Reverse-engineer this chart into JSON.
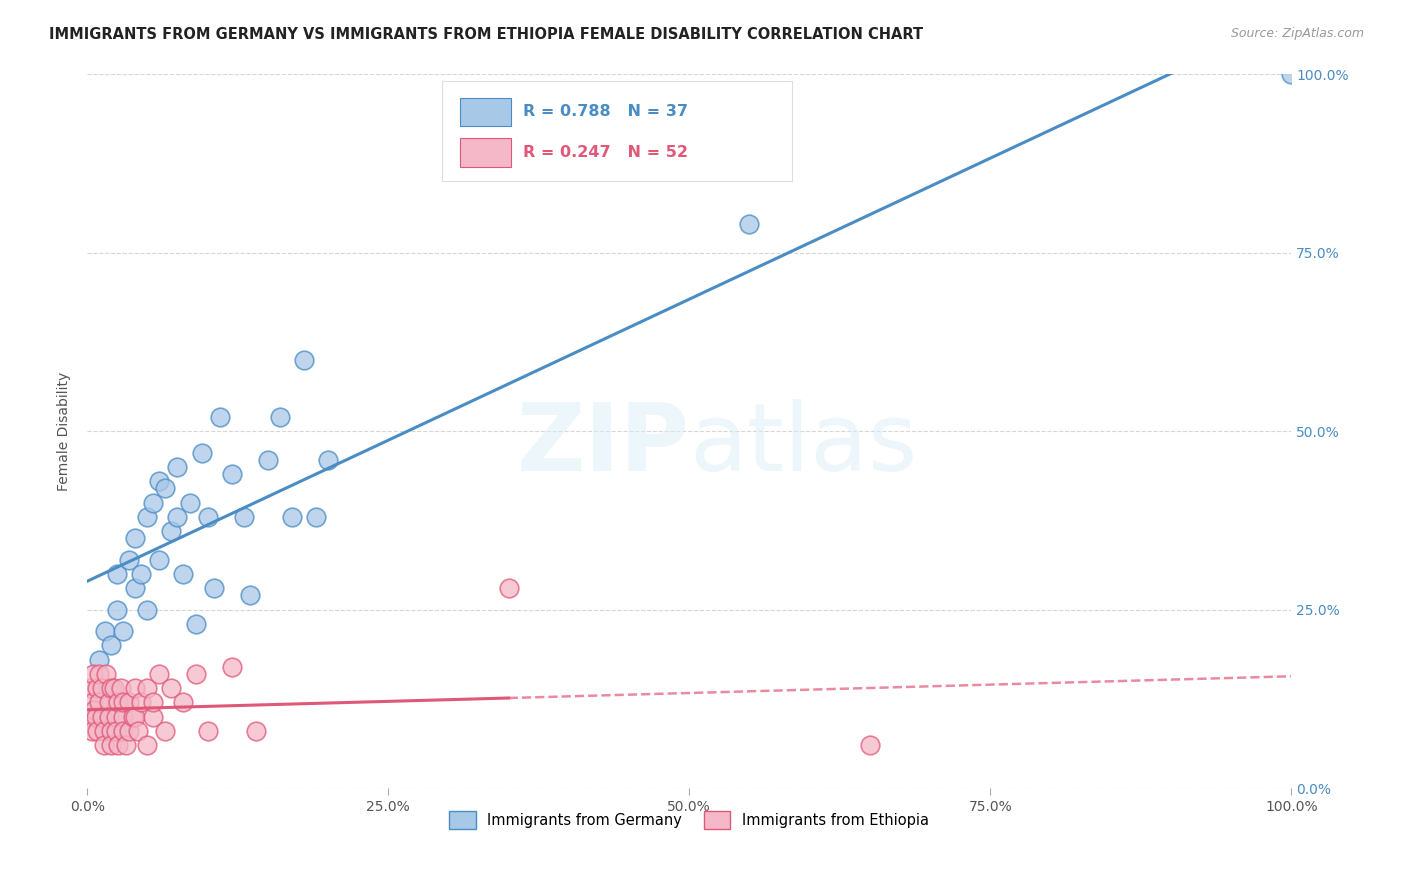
{
  "title": "IMMIGRANTS FROM GERMANY VS IMMIGRANTS FROM ETHIOPIA FEMALE DISABILITY CORRELATION CHART",
  "source": "Source: ZipAtlas.com",
  "ylabel": "Female Disability",
  "ytick_labels": [
    "0.0%",
    "25.0%",
    "50.0%",
    "75.0%",
    "100.0%"
  ],
  "ytick_values": [
    0.0,
    25.0,
    50.0,
    75.0,
    100.0
  ],
  "xtick_labels": [
    "0.0%",
    "25.0%",
    "50.0%",
    "75.0%",
    "100.0%"
  ],
  "xtick_values": [
    0.0,
    25.0,
    50.0,
    75.0,
    100.0
  ],
  "xlim": [
    0.0,
    100.0
  ],
  "ylim": [
    0.0,
    100.0
  ],
  "germany_color": "#a8c8e8",
  "germany_color_dark": "#4a8cc4",
  "ethiopia_color": "#f4b8c8",
  "ethiopia_color_dark": "#e05878",
  "germany_R": 0.788,
  "germany_N": 37,
  "ethiopia_R": 0.247,
  "ethiopia_N": 52,
  "watermark": "ZIPatlas",
  "germany_scatter": [
    [
      1.0,
      18.0
    ],
    [
      1.5,
      22.0
    ],
    [
      2.0,
      20.0
    ],
    [
      2.5,
      25.0
    ],
    [
      2.5,
      30.0
    ],
    [
      3.0,
      22.0
    ],
    [
      3.5,
      32.0
    ],
    [
      4.0,
      28.0
    ],
    [
      4.0,
      35.0
    ],
    [
      4.5,
      30.0
    ],
    [
      5.0,
      38.0
    ],
    [
      5.0,
      25.0
    ],
    [
      5.5,
      40.0
    ],
    [
      6.0,
      43.0
    ],
    [
      6.0,
      32.0
    ],
    [
      6.5,
      42.0
    ],
    [
      7.0,
      36.0
    ],
    [
      7.5,
      45.0
    ],
    [
      7.5,
      38.0
    ],
    [
      8.0,
      30.0
    ],
    [
      8.5,
      40.0
    ],
    [
      9.0,
      23.0
    ],
    [
      9.5,
      47.0
    ],
    [
      10.0,
      38.0
    ],
    [
      10.5,
      28.0
    ],
    [
      11.0,
      52.0
    ],
    [
      12.0,
      44.0
    ],
    [
      13.0,
      38.0
    ],
    [
      13.5,
      27.0
    ],
    [
      15.0,
      46.0
    ],
    [
      16.0,
      52.0
    ],
    [
      17.0,
      38.0
    ],
    [
      18.0,
      60.0
    ],
    [
      19.0,
      38.0
    ],
    [
      20.0,
      46.0
    ],
    [
      55.0,
      79.0
    ],
    [
      100.0,
      100.0
    ]
  ],
  "ethiopia_scatter": [
    [
      0.2,
      14.0
    ],
    [
      0.3,
      10.0
    ],
    [
      0.4,
      8.0
    ],
    [
      0.5,
      12.0
    ],
    [
      0.5,
      16.0
    ],
    [
      0.6,
      11.0
    ],
    [
      0.7,
      10.0
    ],
    [
      0.8,
      14.0
    ],
    [
      0.8,
      8.0
    ],
    [
      1.0,
      16.0
    ],
    [
      1.0,
      12.0
    ],
    [
      1.2,
      10.0
    ],
    [
      1.2,
      14.0
    ],
    [
      1.4,
      8.0
    ],
    [
      1.4,
      6.0
    ],
    [
      1.6,
      16.0
    ],
    [
      1.8,
      12.0
    ],
    [
      1.8,
      10.0
    ],
    [
      2.0,
      14.0
    ],
    [
      2.0,
      8.0
    ],
    [
      2.0,
      6.0
    ],
    [
      2.2,
      14.0
    ],
    [
      2.4,
      10.0
    ],
    [
      2.4,
      8.0
    ],
    [
      2.6,
      12.0
    ],
    [
      2.6,
      6.0
    ],
    [
      2.8,
      14.0
    ],
    [
      3.0,
      10.0
    ],
    [
      3.0,
      8.0
    ],
    [
      3.0,
      12.0
    ],
    [
      3.2,
      6.0
    ],
    [
      3.5,
      12.0
    ],
    [
      3.5,
      8.0
    ],
    [
      3.8,
      10.0
    ],
    [
      4.0,
      14.0
    ],
    [
      4.0,
      10.0
    ],
    [
      4.2,
      8.0
    ],
    [
      4.5,
      12.0
    ],
    [
      5.0,
      14.0
    ],
    [
      5.0,
      6.0
    ],
    [
      5.5,
      10.0
    ],
    [
      5.5,
      12.0
    ],
    [
      6.0,
      16.0
    ],
    [
      6.5,
      8.0
    ],
    [
      7.0,
      14.0
    ],
    [
      8.0,
      12.0
    ],
    [
      9.0,
      16.0
    ],
    [
      10.0,
      8.0
    ],
    [
      12.0,
      17.0
    ],
    [
      14.0,
      8.0
    ],
    [
      35.0,
      28.0
    ],
    [
      65.0,
      6.0
    ]
  ]
}
